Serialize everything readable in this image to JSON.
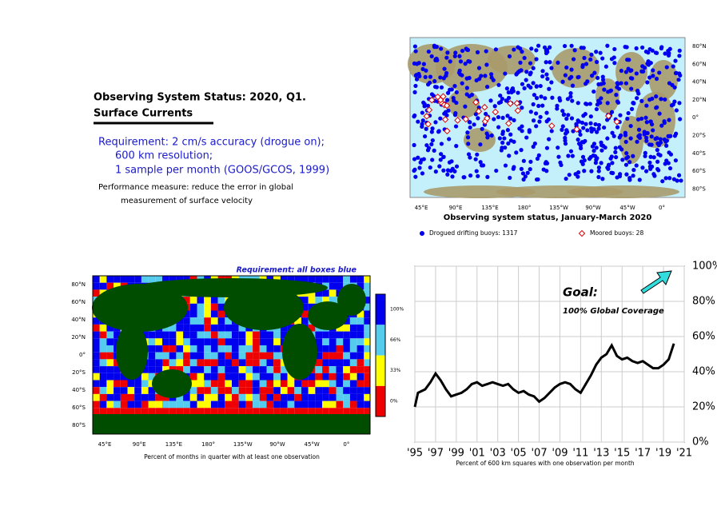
{
  "header": {
    "title": "Observing System Status:  2020, Q1.",
    "subtitle": "Surface Currents"
  },
  "requirement": [
    "Requirement: 2 cm/s accuracy (drogue on);",
    "600 km resolution;",
    "1 sample per month (GOOS/GCOS, 1999)"
  ],
  "performance": [
    "Performance measure: reduce the error in global",
    "measurement of surface velocity"
  ],
  "buoy_map": {
    "lat_labels": [
      "80°N",
      "60°N",
      "40°N",
      "20°N",
      "0°",
      "20°S",
      "40°S",
      "60°S",
      "80°S"
    ],
    "lon_labels": [
      "45°E",
      "90°E",
      "135°E",
      "180°",
      "135°W",
      "90°W",
      "45°W",
      "0°"
    ],
    "caption": "Observing system status, January-March 2020",
    "legend": [
      "Drogued drifting buoys: 1317",
      "Moored buoys: 28"
    ]
  },
  "coverage_map": {
    "annotation": "Requirement: all boxes blue",
    "lat_labels": [
      "80°N",
      "60°N",
      "40°N",
      "20°N",
      "0°",
      "20°S",
      "40°S",
      "60°S",
      "80°S"
    ],
    "lon_labels": [
      "45°E",
      "90°E",
      "135°E",
      "180°",
      "135°W",
      "90°W",
      "45°W",
      "0°"
    ],
    "caption": "Percent of months in quarter with at least one observation",
    "colorbar_labels": [
      "100%",
      "66%",
      "33%",
      "0%"
    ]
  },
  "chart_data": {
    "type": "line",
    "xlabel": "Percent of 600 km squares with one observation per month",
    "annotations": [
      "Goal:",
      "100% Global Coverage"
    ],
    "x": [
      1995,
      1995.3,
      1996,
      1996.5,
      1997,
      1997.5,
      1998,
      1998.5,
      1999,
      1999.5,
      2000,
      2000.5,
      2001,
      2001.5,
      2002,
      2002.5,
      2003,
      2003.5,
      2004,
      2004.5,
      2005,
      2005.5,
      2006,
      2006.5,
      2007,
      2007.5,
      2008,
      2008.5,
      2009,
      2009.5,
      2010,
      2010.5,
      2011,
      2011.5,
      2012,
      2012.5,
      2013,
      2013.5,
      2014,
      2014.5,
      2015,
      2015.5,
      2016,
      2016.5,
      2017,
      2017.5,
      2018,
      2018.5,
      2019,
      2019.5,
      2020
    ],
    "values": [
      20,
      28,
      30,
      34,
      39,
      35,
      30,
      26,
      27,
      28,
      30,
      33,
      34,
      32,
      33,
      34,
      33,
      32,
      33,
      30,
      28,
      29,
      27,
      26,
      23,
      25,
      28,
      31,
      33,
      34,
      33,
      30,
      28,
      33,
      38,
      44,
      48,
      50,
      55,
      49,
      47,
      48,
      46,
      45,
      46,
      44,
      42,
      42,
      44,
      47,
      56
    ],
    "color": "#000000",
    "xlim": [
      1995,
      2021
    ],
    "xticks": [
      {
        "value": 1995,
        "label": "'95"
      },
      {
        "value": 1997,
        "label": "'97"
      },
      {
        "value": 1999,
        "label": "'99"
      },
      {
        "value": 2001,
        "label": "'01"
      },
      {
        "value": 2003,
        "label": "'03"
      },
      {
        "value": 2005,
        "label": "'05"
      },
      {
        "value": 2007,
        "label": "'07"
      },
      {
        "value": 2009,
        "label": "'09"
      },
      {
        "value": 2011,
        "label": "'11"
      },
      {
        "value": 2013,
        "label": "'13"
      },
      {
        "value": 2015,
        "label": "'15"
      },
      {
        "value": 2017,
        "label": "'17"
      },
      {
        "value": 2019,
        "label": "'19"
      },
      {
        "value": 2021,
        "label": "'21"
      }
    ],
    "ylim": [
      0,
      100
    ],
    "yticks": [
      {
        "value": 0,
        "label": "0%"
      },
      {
        "value": 20,
        "label": "20%"
      },
      {
        "value": 40,
        "label": "40%"
      },
      {
        "value": 60,
        "label": "60%"
      },
      {
        "value": 80,
        "label": "80%"
      },
      {
        "value": 100,
        "label": "100%"
      }
    ],
    "grid": true
  }
}
